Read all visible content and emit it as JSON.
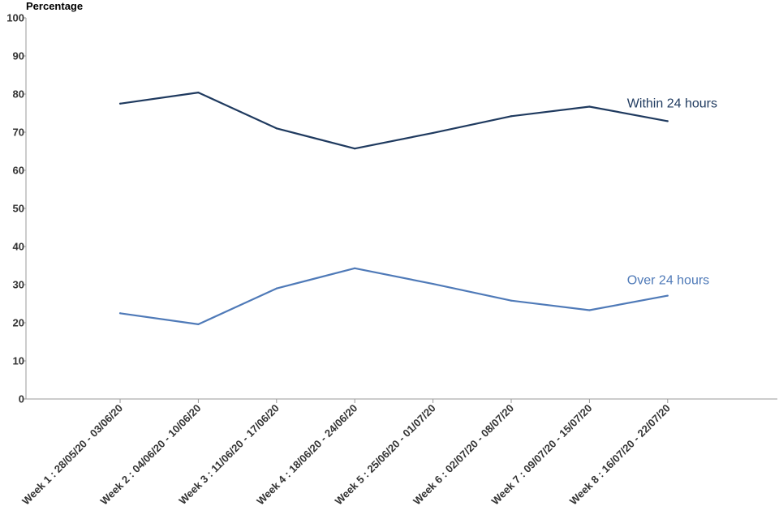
{
  "chart_data": {
    "type": "line",
    "ylabel": "Percentage",
    "xlabel": "",
    "title": "",
    "ylim": [
      0,
      100
    ],
    "y_ticks": [
      0,
      10,
      20,
      30,
      40,
      50,
      60,
      70,
      80,
      90,
      100
    ],
    "grid": false,
    "categories": [
      "Week 1 : 28/05/20 - 03/06/20",
      "Week 2 : 04/06/20 - 10/06/20",
      "Week 3 : 11/06/20 - 17/06/20",
      "Week 4 : 18/06/20 - 24/06/20",
      "Week 5 : 25/06/20 - 01/07/20",
      "Week 6 : 02/07/20 - 08/07/20",
      "Week 7 : 09/07/20 - 15/07/20",
      "Week 8 : 16/07/20 - 22/07/20"
    ],
    "series": [
      {
        "name": "Within 24 hours",
        "color": "#1f3a5f",
        "values": [
          77.5,
          80.4,
          71.0,
          65.7,
          69.8,
          74.2,
          76.7,
          72.9
        ]
      },
      {
        "name": "Over 24 hours",
        "color": "#4f7ab8",
        "values": [
          22.5,
          19.6,
          29.0,
          34.3,
          30.2,
          25.8,
          23.3,
          27.1
        ]
      }
    ]
  }
}
